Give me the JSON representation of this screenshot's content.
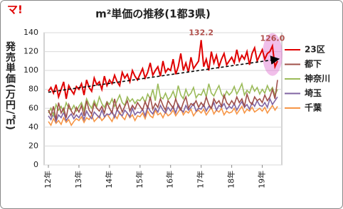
{
  "logo": "マ!",
  "chart_data": {
    "type": "line",
    "title": "m²単価の推移(1都3県)",
    "y_label": "発売単価(万円/㎡)",
    "categories": [
      "12年",
      null,
      null,
      null,
      null,
      null,
      null,
      null,
      null,
      null,
      null,
      null,
      "13年",
      null,
      null,
      null,
      null,
      null,
      null,
      null,
      null,
      null,
      null,
      null,
      "14年",
      null,
      null,
      null,
      null,
      null,
      null,
      null,
      null,
      null,
      null,
      null,
      "15年",
      null,
      null,
      null,
      null,
      null,
      null,
      null,
      null,
      null,
      null,
      null,
      "16年",
      null,
      null,
      null,
      null,
      null,
      null,
      null,
      null,
      null,
      null,
      null,
      "17年",
      null,
      null,
      null,
      null,
      null,
      null,
      null,
      null,
      null,
      null,
      null,
      "18年",
      null,
      null,
      null,
      null,
      null,
      null,
      null,
      null,
      null,
      null,
      null,
      "19年",
      null,
      null,
      null,
      null,
      null,
      null
    ],
    "ylim": [
      0,
      140
    ],
    "yticks": [
      0,
      20,
      40,
      60,
      80,
      100,
      120,
      140
    ],
    "grid": true,
    "series": [
      {
        "name": "23区",
        "color": "#e00000",
        "values": [
          78,
          82,
          76,
          85,
          72,
          80,
          88,
          70,
          84,
          79,
          75,
          83,
          80,
          86,
          74,
          90,
          82,
          78,
          92,
          85,
          88,
          80,
          94,
          84,
          90,
          86,
          95,
          88,
          84,
          98,
          92,
          96,
          88,
          100,
          94,
          90,
          96,
          102,
          92,
          98,
          108,
          95,
          100,
          104,
          94,
          110,
          98,
          102,
          100,
          112,
          96,
          104,
          118,
          100,
          108,
          98,
          114,
          102,
          106,
          110,
          132.2,
          104,
          112,
          100,
          120,
          108,
          116,
          104,
          112,
          118,
          106,
          110,
          114,
          108,
          122,
          110,
          116,
          112,
          120,
          106,
          118,
          124,
          110,
          116,
          122,
          112,
          118,
          120,
          126.0,
          104,
          110
        ]
      },
      {
        "name": "都下",
        "color": "#a0504a",
        "values": [
          58,
          52,
          62,
          48,
          66,
          55,
          60,
          50,
          64,
          57,
          53,
          61,
          56,
          63,
          52,
          68,
          58,
          54,
          65,
          60,
          57,
          62,
          55,
          66,
          60,
          55,
          70,
          58,
          64,
          56,
          62,
          68,
          57,
          63,
          59,
          66,
          62,
          58,
          67,
          60,
          72,
          59,
          65,
          61,
          70,
          63,
          58,
          68,
          64,
          60,
          70,
          62,
          58,
          66,
          72,
          60,
          65,
          63,
          68,
          61,
          66,
          62,
          72,
          64,
          60,
          70,
          65,
          68,
          62,
          74,
          66,
          63,
          68,
          64,
          72,
          66,
          70,
          62,
          75,
          67,
          64,
          72,
          68,
          70,
          66,
          74,
          68,
          72,
          80,
          70,
          90
        ]
      },
      {
        "name": "神奈川",
        "color": "#9bbb59",
        "values": [
          55,
          60,
          52,
          64,
          58,
          62,
          56,
          66,
          60,
          58,
          63,
          57,
          62,
          66,
          58,
          70,
          64,
          60,
          68,
          62,
          72,
          65,
          61,
          67,
          64,
          70,
          62,
          68,
          74,
          66,
          63,
          72,
          67,
          70,
          65,
          69,
          68,
          72,
          66,
          75,
          70,
          80,
          68,
          86,
          72,
          70,
          76,
          69,
          72,
          78,
          70,
          84,
          74,
          70,
          80,
          73,
          76,
          82,
          71,
          75,
          74,
          80,
          72,
          86,
          76,
          73,
          79,
          84,
          75,
          71,
          78,
          74,
          77,
          83,
          75,
          80,
          86,
          74,
          79,
          76,
          84,
          78,
          82,
          75,
          80,
          76,
          84,
          78,
          82,
          74,
          80
        ]
      },
      {
        "name": "埼玉",
        "color": "#8064a2",
        "values": [
          52,
          48,
          55,
          46,
          53,
          50,
          56,
          47,
          51,
          54,
          49,
          53,
          50,
          55,
          48,
          57,
          52,
          49,
          56,
          53,
          50,
          58,
          51,
          54,
          53,
          57,
          50,
          59,
          54,
          52,
          58,
          55,
          51,
          60,
          53,
          56,
          55,
          59,
          52,
          62,
          57,
          54,
          60,
          56,
          63,
          58,
          55,
          61,
          57,
          62,
          55,
          64,
          59,
          56,
          63,
          58,
          61,
          65,
          57,
          60,
          59,
          64,
          57,
          62,
          60,
          66,
          58,
          63,
          61,
          65,
          59,
          62,
          60,
          65,
          58,
          63,
          67,
          61,
          64,
          59,
          66,
          62,
          68,
          63,
          62,
          66,
          61,
          70,
          64,
          68,
          72
        ]
      },
      {
        "name": "千葉",
        "color": "#f79646",
        "values": [
          46,
          42,
          49,
          44,
          47,
          43,
          50,
          45,
          48,
          42,
          46,
          49,
          47,
          51,
          45,
          50,
          48,
          53,
          46,
          49,
          52,
          47,
          50,
          54,
          50,
          46,
          53,
          49,
          56,
          51,
          48,
          55,
          50,
          53,
          47,
          52,
          51,
          55,
          49,
          57,
          52,
          50,
          58,
          53,
          55,
          50,
          56,
          52,
          54,
          58,
          52,
          56,
          60,
          53,
          57,
          55,
          59,
          52,
          56,
          58,
          55,
          59,
          53,
          57,
          61,
          54,
          58,
          56,
          60,
          53,
          57,
          55,
          56,
          60,
          54,
          58,
          62,
          55,
          59,
          57,
          61,
          56,
          58,
          60,
          57,
          61,
          55,
          59,
          63,
          58,
          62
        ]
      }
    ],
    "trend": {
      "values": [
        77,
        112
      ]
    },
    "annotations": [
      {
        "text": "132.2",
        "series": 0,
        "index": 60
      },
      {
        "text": "126.0",
        "series": 0,
        "index": 88
      }
    ]
  }
}
